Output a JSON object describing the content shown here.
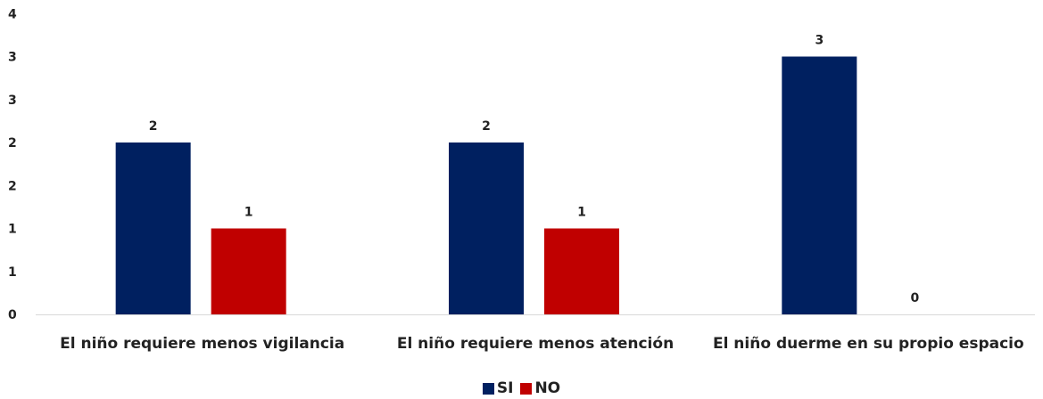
{
  "chart_data": {
    "type": "bar",
    "categories": [
      "El niño requiere menos vigilancia",
      "El niño requiere menos atención",
      "El niño duerme en su propio espacio"
    ],
    "series": [
      {
        "name": "SI",
        "values": [
          2,
          2,
          3
        ],
        "color": "#002060"
      },
      {
        "name": "NO",
        "values": [
          1,
          1,
          0
        ],
        "color": "#C00000"
      }
    ],
    "y_tick_values": [
      0,
      0.5,
      1,
      1.5,
      2,
      2.5,
      3,
      3.5,
      4
    ],
    "y_tick_labels": [
      "0",
      "1",
      "1",
      "2",
      "2",
      "3",
      "3",
      "4",
      "4"
    ],
    "ylim": [
      0,
      3.5
    ],
    "grid": false,
    "legend_position": "bottom",
    "title": "",
    "xlabel": "",
    "ylabel": ""
  }
}
